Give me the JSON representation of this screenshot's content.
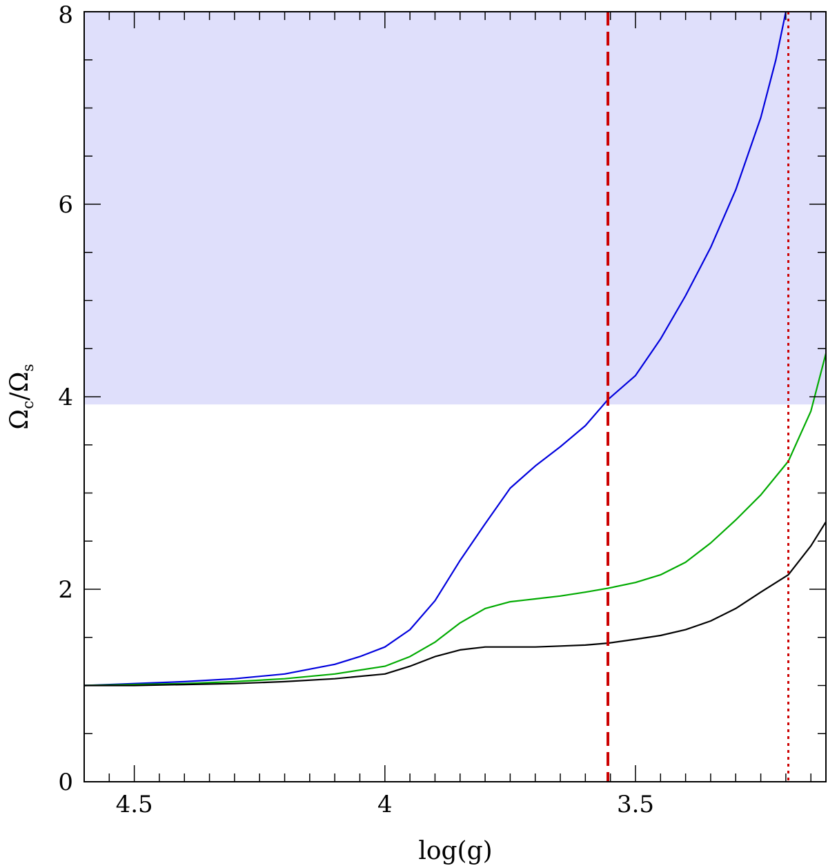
{
  "chart_data": {
    "type": "line",
    "xlabel": "log(g)",
    "ylabel": "Ω_c/Ω_s",
    "ylabel_parts": {
      "omega1": "Ω",
      "sub1": "c",
      "slash": "/",
      "omega2": "Ω",
      "sub2": "s"
    },
    "xlim": [
      4.6,
      3.12
    ],
    "ylim": [
      0,
      8
    ],
    "x_ticks": [
      4.5,
      4.0,
      3.5
    ],
    "x_tick_labels": [
      "4.5",
      "4",
      "3.5"
    ],
    "y_ticks": [
      0,
      2,
      4,
      6,
      8
    ],
    "y_tick_labels": [
      "0",
      "2",
      "4",
      "6",
      "8"
    ],
    "shaded_region": {
      "y_from": 3.92,
      "y_to": 8,
      "color": "#dfdffb"
    },
    "vlines": [
      {
        "x": 3.555,
        "style": "dashed",
        "color": "#cc0000"
      },
      {
        "x": 3.195,
        "style": "dotted",
        "color": "#cc0000"
      }
    ],
    "series": [
      {
        "color": "#0000dd",
        "points": [
          [
            4.6,
            1.0
          ],
          [
            4.5,
            1.02
          ],
          [
            4.4,
            1.04
          ],
          [
            4.3,
            1.07
          ],
          [
            4.2,
            1.12
          ],
          [
            4.1,
            1.22
          ],
          [
            4.05,
            1.3
          ],
          [
            4.0,
            1.4
          ],
          [
            3.95,
            1.58
          ],
          [
            3.9,
            1.88
          ],
          [
            3.85,
            2.3
          ],
          [
            3.8,
            2.68
          ],
          [
            3.75,
            3.05
          ],
          [
            3.7,
            3.28
          ],
          [
            3.65,
            3.48
          ],
          [
            3.6,
            3.7
          ],
          [
            3.555,
            3.97
          ],
          [
            3.5,
            4.22
          ],
          [
            3.45,
            4.6
          ],
          [
            3.4,
            5.05
          ],
          [
            3.35,
            5.55
          ],
          [
            3.3,
            6.15
          ],
          [
            3.25,
            6.9
          ],
          [
            3.22,
            7.5
          ],
          [
            3.2,
            8.0
          ]
        ]
      },
      {
        "color": "#00aa00",
        "points": [
          [
            4.6,
            1.0
          ],
          [
            4.5,
            1.01
          ],
          [
            4.4,
            1.02
          ],
          [
            4.3,
            1.04
          ],
          [
            4.2,
            1.07
          ],
          [
            4.1,
            1.12
          ],
          [
            4.0,
            1.2
          ],
          [
            3.95,
            1.3
          ],
          [
            3.9,
            1.45
          ],
          [
            3.85,
            1.65
          ],
          [
            3.8,
            1.8
          ],
          [
            3.75,
            1.87
          ],
          [
            3.7,
            1.9
          ],
          [
            3.65,
            1.93
          ],
          [
            3.6,
            1.97
          ],
          [
            3.555,
            2.01
          ],
          [
            3.5,
            2.07
          ],
          [
            3.45,
            2.15
          ],
          [
            3.4,
            2.28
          ],
          [
            3.35,
            2.48
          ],
          [
            3.3,
            2.72
          ],
          [
            3.25,
            2.98
          ],
          [
            3.195,
            3.33
          ],
          [
            3.15,
            3.85
          ],
          [
            3.12,
            4.45
          ]
        ]
      },
      {
        "color": "#000000",
        "points": [
          [
            4.6,
            1.0
          ],
          [
            4.5,
            1.0
          ],
          [
            4.4,
            1.01
          ],
          [
            4.3,
            1.02
          ],
          [
            4.2,
            1.04
          ],
          [
            4.1,
            1.07
          ],
          [
            4.0,
            1.12
          ],
          [
            3.95,
            1.2
          ],
          [
            3.9,
            1.3
          ],
          [
            3.85,
            1.37
          ],
          [
            3.8,
            1.4
          ],
          [
            3.75,
            1.4
          ],
          [
            3.7,
            1.4
          ],
          [
            3.65,
            1.41
          ],
          [
            3.6,
            1.42
          ],
          [
            3.555,
            1.44
          ],
          [
            3.5,
            1.48
          ],
          [
            3.45,
            1.52
          ],
          [
            3.4,
            1.58
          ],
          [
            3.35,
            1.67
          ],
          [
            3.3,
            1.8
          ],
          [
            3.25,
            1.97
          ],
          [
            3.195,
            2.15
          ],
          [
            3.15,
            2.45
          ],
          [
            3.12,
            2.7
          ]
        ]
      }
    ]
  }
}
